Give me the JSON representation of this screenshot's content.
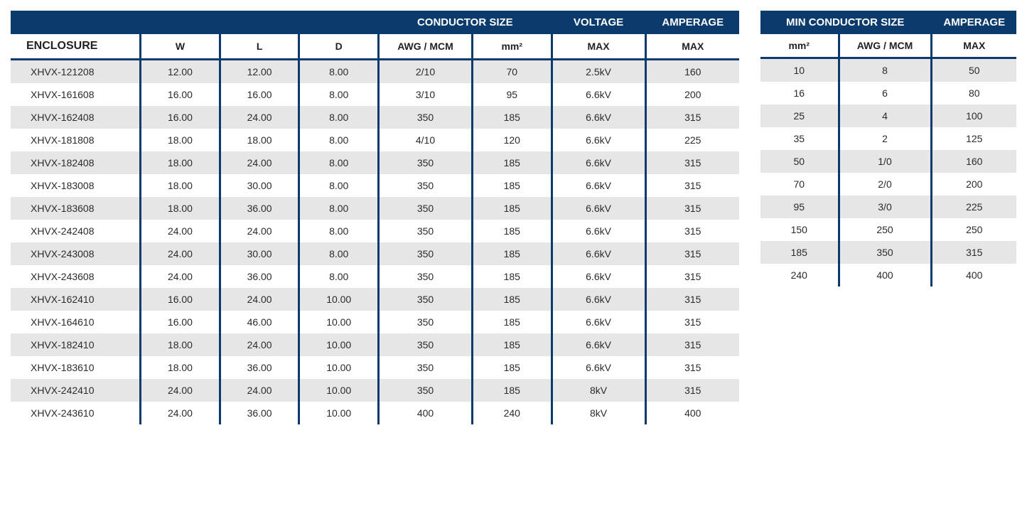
{
  "colors": {
    "header_bg": "#0a3b6c",
    "header_text": "#ffffff",
    "row_odd_bg": "#e6e6e6",
    "row_even_bg": "#ffffff",
    "border": "#0a3b6c",
    "body_text": "#2b2b2b"
  },
  "main_table": {
    "top_headers": {
      "conductor_size": "CONDUCTOR SIZE",
      "voltage": "VOLTAGE",
      "amperage": "AMPERAGE"
    },
    "sub_headers": {
      "enclosure": "ENCLOSURE",
      "w": "W",
      "l": "L",
      "d": "D",
      "awg_mcm": "AWG / MCM",
      "mm2": "mm²",
      "voltage_max": "MAX",
      "amperage_max": "MAX"
    },
    "rows": [
      {
        "enclosure": "XHVX-121208",
        "w": "12.00",
        "l": "12.00",
        "d": "8.00",
        "awg": "2/10",
        "mm2": "70",
        "voltage": "2.5kV",
        "amperage": "160"
      },
      {
        "enclosure": "XHVX-161608",
        "w": "16.00",
        "l": "16.00",
        "d": "8.00",
        "awg": "3/10",
        "mm2": "95",
        "voltage": "6.6kV",
        "amperage": "200"
      },
      {
        "enclosure": "XHVX-162408",
        "w": "16.00",
        "l": "24.00",
        "d": "8.00",
        "awg": "350",
        "mm2": "185",
        "voltage": "6.6kV",
        "amperage": "315"
      },
      {
        "enclosure": "XHVX-181808",
        "w": "18.00",
        "l": "18.00",
        "d": "8.00",
        "awg": "4/10",
        "mm2": "120",
        "voltage": "6.6kV",
        "amperage": "225"
      },
      {
        "enclosure": "XHVX-182408",
        "w": "18.00",
        "l": "24.00",
        "d": "8.00",
        "awg": "350",
        "mm2": "185",
        "voltage": "6.6kV",
        "amperage": "315"
      },
      {
        "enclosure": "XHVX-183008",
        "w": "18.00",
        "l": "30.00",
        "d": "8.00",
        "awg": "350",
        "mm2": "185",
        "voltage": "6.6kV",
        "amperage": "315"
      },
      {
        "enclosure": "XHVX-183608",
        "w": "18.00",
        "l": "36.00",
        "d": "8.00",
        "awg": "350",
        "mm2": "185",
        "voltage": "6.6kV",
        "amperage": "315"
      },
      {
        "enclosure": "XHVX-242408",
        "w": "24.00",
        "l": "24.00",
        "d": "8.00",
        "awg": "350",
        "mm2": "185",
        "voltage": "6.6kV",
        "amperage": "315"
      },
      {
        "enclosure": "XHVX-243008",
        "w": "24.00",
        "l": "30.00",
        "d": "8.00",
        "awg": "350",
        "mm2": "185",
        "voltage": "6.6kV",
        "amperage": "315"
      },
      {
        "enclosure": "XHVX-243608",
        "w": "24.00",
        "l": "36.00",
        "d": "8.00",
        "awg": "350",
        "mm2": "185",
        "voltage": "6.6kV",
        "amperage": "315"
      },
      {
        "enclosure": "XHVX-162410",
        "w": "16.00",
        "l": "24.00",
        "d": "10.00",
        "awg": "350",
        "mm2": "185",
        "voltage": "6.6kV",
        "amperage": "315"
      },
      {
        "enclosure": "XHVX-164610",
        "w": "16.00",
        "l": "46.00",
        "d": "10.00",
        "awg": "350",
        "mm2": "185",
        "voltage": "6.6kV",
        "amperage": "315"
      },
      {
        "enclosure": "XHVX-182410",
        "w": "18.00",
        "l": "24.00",
        "d": "10.00",
        "awg": "350",
        "mm2": "185",
        "voltage": "6.6kV",
        "amperage": "315"
      },
      {
        "enclosure": "XHVX-183610",
        "w": "18.00",
        "l": "36.00",
        "d": "10.00",
        "awg": "350",
        "mm2": "185",
        "voltage": "6.6kV",
        "amperage": "315"
      },
      {
        "enclosure": "XHVX-242410",
        "w": "24.00",
        "l": "24.00",
        "d": "10.00",
        "awg": "350",
        "mm2": "185",
        "voltage": "8kV",
        "amperage": "315"
      },
      {
        "enclosure": "XHVX-243610",
        "w": "24.00",
        "l": "36.00",
        "d": "10.00",
        "awg": "400",
        "mm2": "240",
        "voltage": "8kV",
        "amperage": "400"
      }
    ]
  },
  "side_table": {
    "top_headers": {
      "min_conductor_size": "MIN CONDUCTOR SIZE",
      "amperage": "AMPERAGE"
    },
    "sub_headers": {
      "mm2": "mm²",
      "awg_mcm": "AWG / MCM",
      "amperage_max": "MAX"
    },
    "rows": [
      {
        "mm2": "10",
        "awg": "8",
        "amperage": "50"
      },
      {
        "mm2": "16",
        "awg": "6",
        "amperage": "80"
      },
      {
        "mm2": "25",
        "awg": "4",
        "amperage": "100"
      },
      {
        "mm2": "35",
        "awg": "2",
        "amperage": "125"
      },
      {
        "mm2": "50",
        "awg": "1/0",
        "amperage": "160"
      },
      {
        "mm2": "70",
        "awg": "2/0",
        "amperage": "200"
      },
      {
        "mm2": "95",
        "awg": "3/0",
        "amperage": "225"
      },
      {
        "mm2": "150",
        "awg": "250",
        "amperage": "250"
      },
      {
        "mm2": "185",
        "awg": "350",
        "amperage": "315"
      },
      {
        "mm2": "240",
        "awg": "400",
        "amperage": "400"
      }
    ]
  }
}
